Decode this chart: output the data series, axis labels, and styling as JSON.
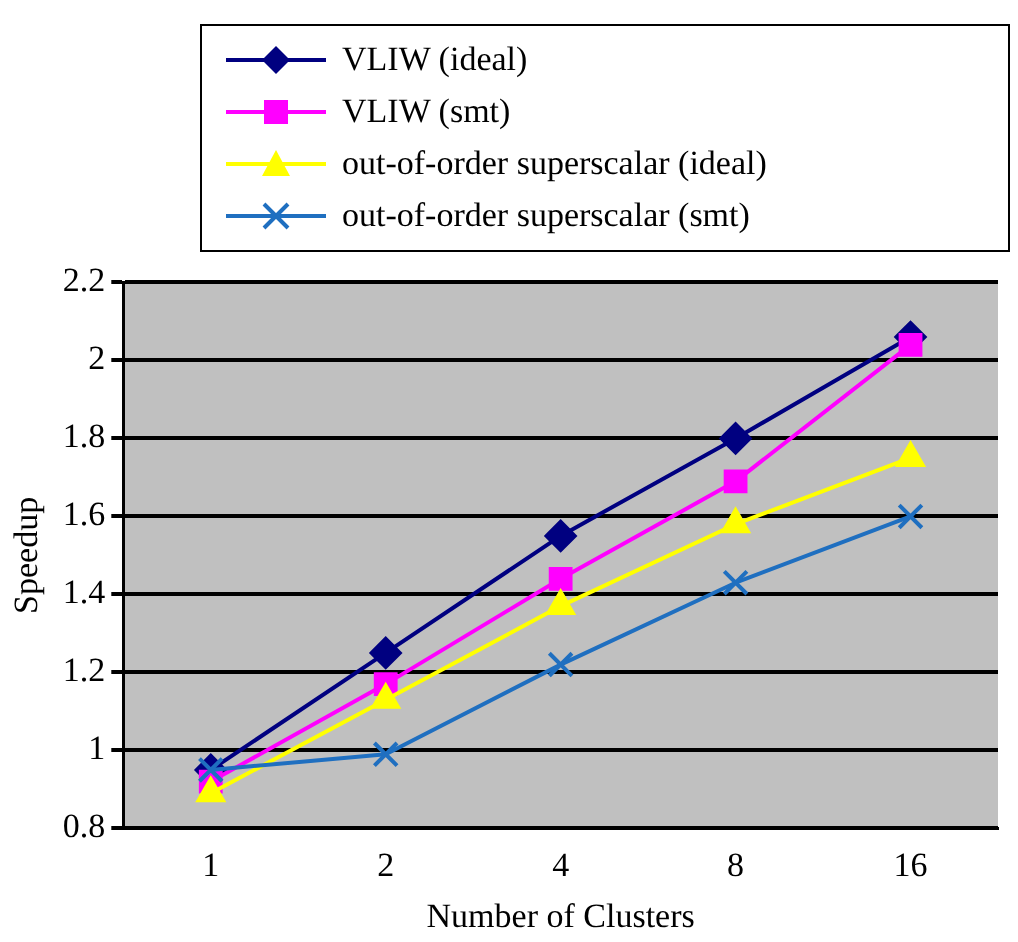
{
  "chart_data": {
    "type": "line",
    "xlabel": "Number of Clusters",
    "ylabel": "Speedup",
    "categories": [
      "1",
      "2",
      "4",
      "8",
      "16"
    ],
    "series": [
      {
        "name": "VLIW (ideal)",
        "color": "#000080",
        "marker": "diamond",
        "values": [
          0.95,
          1.25,
          1.55,
          1.8,
          2.06
        ]
      },
      {
        "name": "VLIW (smt)",
        "color": "#ff00ff",
        "marker": "square",
        "values": [
          0.92,
          1.17,
          1.44,
          1.69,
          2.04
        ]
      },
      {
        "name": "out-of-order superscalar (ideal)",
        "color": "#ffff00",
        "marker": "triangle",
        "values": [
          0.89,
          1.13,
          1.37,
          1.58,
          1.75
        ]
      },
      {
        "name": "out-of-order superscalar (smt)",
        "color": "#1f6fc0",
        "marker": "cross",
        "values": [
          0.95,
          0.99,
          1.22,
          1.43,
          1.6
        ]
      }
    ],
    "ylim": [
      0.8,
      2.2
    ],
    "yticks": [
      0.8,
      1,
      1.2,
      1.4,
      1.6,
      1.8,
      2,
      2.2
    ],
    "grid": "y",
    "legend": "top",
    "line_style": "solid"
  }
}
